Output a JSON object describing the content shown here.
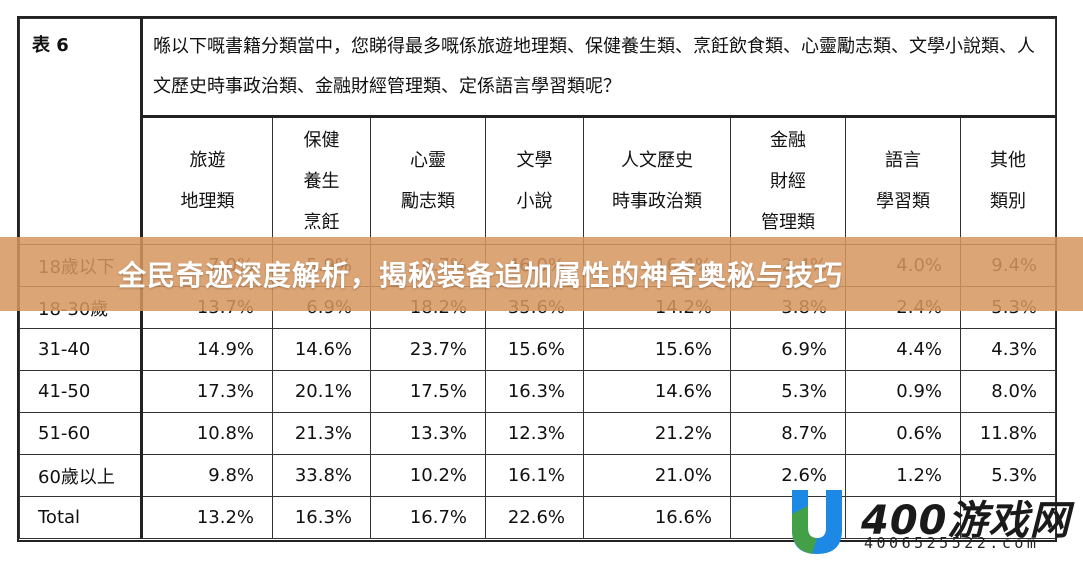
{
  "table": {
    "label": "表 6",
    "question": "喺以下嘅書籍分類當中，您睇得最多嘅係旅遊地理類、保健養生類、烹飪飲食類、心靈勵志類、文學小說類、人文歷史時事政治類、金融財經管理類、定係語言學習類呢？",
    "headers": [
      [
        "旅遊",
        "地理類"
      ],
      [
        "保健",
        "養生",
        "烹飪"
      ],
      [
        "心靈",
        "勵志類"
      ],
      [
        "文學",
        "小說"
      ],
      [
        "人文歷史",
        "時事政治類"
      ],
      [
        "金融",
        "財經",
        "管理類"
      ],
      [
        "語言",
        "學習類"
      ],
      [
        "其他",
        "類別"
      ]
    ],
    "rows": [
      {
        "label": "18歲以下",
        "values": [
          "7.0%",
          "5.9%",
          "8.7%",
          "46.0%",
          "16.4%",
          "2.4%",
          "4.0%",
          "9.4%"
        ]
      },
      {
        "label": "18-30歲",
        "values": [
          "13.7%",
          "6.9%",
          "18.2%",
          "35.6%",
          "14.2%",
          "3.8%",
          "2.4%",
          "5.3%"
        ]
      },
      {
        "label": "31-40",
        "values": [
          "14.9%",
          "14.6%",
          "23.7%",
          "15.6%",
          "15.6%",
          "6.9%",
          "4.4%",
          "4.3%"
        ]
      },
      {
        "label": "41-50",
        "values": [
          "17.3%",
          "20.1%",
          "17.5%",
          "16.3%",
          "14.6%",
          "5.3%",
          "0.9%",
          "8.0%"
        ]
      },
      {
        "label": "51-60",
        "values": [
          "10.8%",
          "21.3%",
          "13.3%",
          "12.3%",
          "21.2%",
          "8.7%",
          "0.6%",
          "11.8%"
        ]
      },
      {
        "label": "60歲以上",
        "values": [
          "9.8%",
          "33.8%",
          "10.2%",
          "16.1%",
          "21.0%",
          "2.6%",
          "1.2%",
          "5.3%"
        ]
      },
      {
        "label": "Total",
        "values": [
          "13.2%",
          "16.3%",
          "16.7%",
          "22.6%",
          "16.6%",
          "",
          "",
          ""
        ]
      }
    ]
  },
  "banner": {
    "text": "全民奇迹深度解析，揭秘装备追加属性的神奇奥秘与技巧"
  },
  "watermark": {
    "name": "400游戏网",
    "url": "4006525522.com",
    "colors": {
      "blue": "#1e88e5",
      "green": "#43a047"
    }
  }
}
